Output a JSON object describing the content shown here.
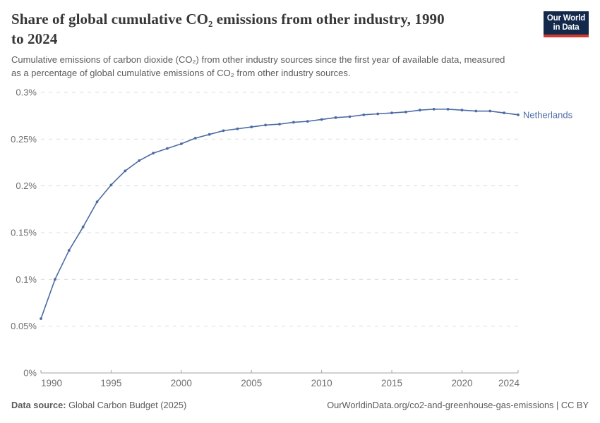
{
  "header": {
    "title_lines": [
      "Share of global cumulative CO₂ emissions from other industry, 1990",
      "to 2024"
    ],
    "subtitle_lines": [
      "Cumulative emissions of carbon dioxide (CO₂) from other industry sources since the first year of available data, measured",
      "as a percentage of global cumulative emissions of CO₂ from other industry sources."
    ],
    "logo": {
      "line1": "Our World",
      "line2": "in Data"
    }
  },
  "chart_data": {
    "type": "line",
    "title": "Share of global cumulative CO₂ emissions from other industry, 1990 to 2024",
    "xlabel": "",
    "ylabel": "",
    "unit": "%",
    "grid": "horizontal-dashed",
    "legend_position": "line-end",
    "xlim": [
      1990,
      2024
    ],
    "ylim": [
      0,
      0.3
    ],
    "x": [
      1990,
      1991,
      1992,
      1993,
      1994,
      1995,
      1996,
      1997,
      1998,
      1999,
      2000,
      2001,
      2002,
      2003,
      2004,
      2005,
      2006,
      2007,
      2008,
      2009,
      2010,
      2011,
      2012,
      2013,
      2014,
      2015,
      2016,
      2017,
      2018,
      2019,
      2020,
      2021,
      2022,
      2023,
      2024
    ],
    "series": [
      {
        "name": "Netherlands",
        "color": "#4C6BA3",
        "values": [
          0.058,
          0.1,
          0.131,
          0.156,
          0.183,
          0.201,
          0.216,
          0.227,
          0.235,
          0.24,
          0.245,
          0.251,
          0.255,
          0.259,
          0.261,
          0.263,
          0.265,
          0.266,
          0.268,
          0.269,
          0.271,
          0.273,
          0.274,
          0.276,
          0.277,
          0.278,
          0.279,
          0.281,
          0.282,
          0.282,
          0.281,
          0.28,
          0.28,
          0.278,
          0.276
        ]
      }
    ],
    "yticks": [
      {
        "value": 0,
        "label": "0%"
      },
      {
        "value": 0.05,
        "label": "0.05%"
      },
      {
        "value": 0.1,
        "label": "0.1%"
      },
      {
        "value": 0.15,
        "label": "0.15%"
      },
      {
        "value": 0.2,
        "label": "0.2%"
      },
      {
        "value": 0.25,
        "label": "0.25%"
      },
      {
        "value": 0.3,
        "label": "0.3%"
      }
    ],
    "xticks": [
      {
        "value": 1990,
        "label": "1990"
      },
      {
        "value": 1995,
        "label": "1995"
      },
      {
        "value": 2000,
        "label": "2000"
      },
      {
        "value": 2005,
        "label": "2005"
      },
      {
        "value": 2010,
        "label": "2010"
      },
      {
        "value": 2015,
        "label": "2015"
      },
      {
        "value": 2020,
        "label": "2020"
      },
      {
        "value": 2024,
        "label": "2024"
      }
    ]
  },
  "footer": {
    "source_label": "Data source:",
    "source_value": " Global Carbon Budget (2025)",
    "credit": "OurWorldinData.org/co2-and-greenhouse-gas-emissions | CC BY"
  },
  "colors": {
    "accent": "#4C6BA3",
    "grid": "#DCDCDC",
    "axis": "#A3A3A3",
    "tick_text": "#6E6E6E",
    "title_text": "#373737",
    "subtitle_text": "#5B5B5B",
    "logo_navy": "#12294B",
    "logo_red": "#D23A2E",
    "background": "#FFFFFF"
  }
}
